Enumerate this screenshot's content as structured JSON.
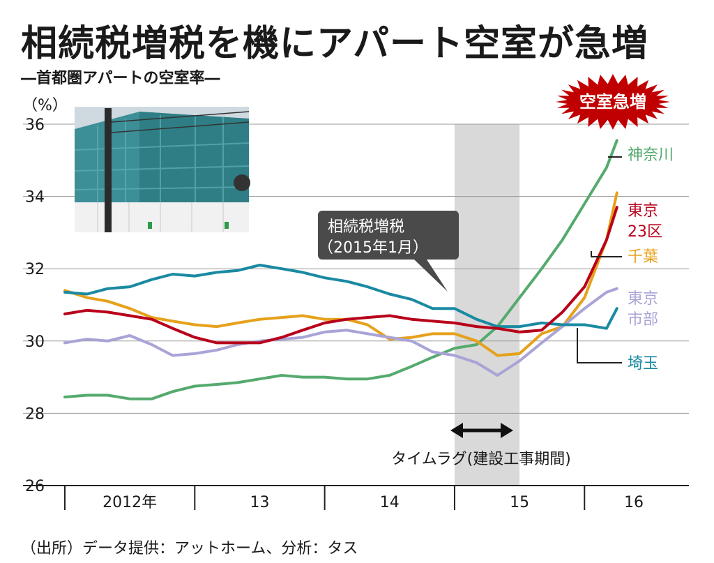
{
  "title": "相続税増税を機にアパート空室が急増",
  "subtitle": "―首都圏アパートの空室率―",
  "source": "（出所）データ提供：アットホーム、分析：タス",
  "badge": "空室急増",
  "colors": {
    "神奈川": "#55aa6e",
    "東京23区": "#b8001a",
    "千葉": "#e6a11c",
    "東京市部": "#a8a4d6",
    "埼玉": "#1a8aa2",
    "band": "#d9d9d9",
    "badge": "#c00000"
  },
  "callout": {
    "line1": "相続税増税",
    "line2": "（2015年1月）"
  },
  "timelag_label": "タイムラグ(建設工事期間)",
  "photo": {
    "icon": "building-under-construction-photo"
  },
  "chart_data": {
    "type": "line",
    "ylabel": "（%）",
    "ylim": [
      26,
      36
    ],
    "yticks": [
      26,
      28,
      30,
      32,
      34,
      36
    ],
    "xlim": [
      2012.0,
      2016.75
    ],
    "year_labels": [
      {
        "label": "2012年",
        "x": 2012.5
      },
      {
        "label": "13",
        "x": 2013.5
      },
      {
        "label": "14",
        "x": 2014.5
      },
      {
        "label": "15",
        "x": 2015.5
      },
      {
        "label": "16",
        "x": 2016.38
      }
    ],
    "year_dividers": [
      2012.0,
      2013.0,
      2014.0,
      2015.0,
      2016.0
    ],
    "shaded_band": [
      2015.0,
      2015.5
    ],
    "grid": true,
    "series": [
      {
        "name": "神奈川",
        "label_lines": [
          "神奈川"
        ],
        "x": [
          2012.0,
          2012.17,
          2012.33,
          2012.5,
          2012.67,
          2012.83,
          2013.0,
          2013.17,
          2013.33,
          2013.5,
          2013.67,
          2013.83,
          2014.0,
          2014.17,
          2014.33,
          2014.5,
          2014.67,
          2014.83,
          2015.0,
          2015.17,
          2015.33,
          2015.5,
          2015.67,
          2015.83,
          2016.0,
          2016.17,
          2016.25
        ],
        "values": [
          28.45,
          28.5,
          28.5,
          28.4,
          28.4,
          28.6,
          28.75,
          28.8,
          28.85,
          28.95,
          29.05,
          29.0,
          29.0,
          28.95,
          28.95,
          29.05,
          29.3,
          29.55,
          29.8,
          29.9,
          30.4,
          31.2,
          32.0,
          32.8,
          33.8,
          34.8,
          35.55
        ]
      },
      {
        "name": "東京23区",
        "label_lines": [
          "東京",
          "23区"
        ],
        "x": [
          2012.0,
          2012.17,
          2012.33,
          2012.5,
          2012.67,
          2012.83,
          2013.0,
          2013.17,
          2013.33,
          2013.5,
          2013.67,
          2013.83,
          2014.0,
          2014.17,
          2014.33,
          2014.5,
          2014.67,
          2014.83,
          2015.0,
          2015.17,
          2015.33,
          2015.5,
          2015.67,
          2015.83,
          2016.0,
          2016.17,
          2016.25
        ],
        "values": [
          30.75,
          30.85,
          30.8,
          30.7,
          30.6,
          30.35,
          30.1,
          29.95,
          29.95,
          29.95,
          30.1,
          30.3,
          30.5,
          30.6,
          30.65,
          30.7,
          30.6,
          30.55,
          30.5,
          30.4,
          30.35,
          30.25,
          30.3,
          30.8,
          31.5,
          32.8,
          33.7
        ]
      },
      {
        "name": "千葉",
        "label_lines": [
          "千葉"
        ],
        "x": [
          2012.0,
          2012.17,
          2012.33,
          2012.5,
          2012.67,
          2012.83,
          2013.0,
          2013.17,
          2013.33,
          2013.5,
          2013.67,
          2013.83,
          2014.0,
          2014.17,
          2014.33,
          2014.5,
          2014.67,
          2014.83,
          2015.0,
          2015.17,
          2015.33,
          2015.5,
          2015.67,
          2015.83,
          2016.0,
          2016.17,
          2016.25
        ],
        "values": [
          31.4,
          31.2,
          31.1,
          30.9,
          30.65,
          30.55,
          30.45,
          30.4,
          30.5,
          30.6,
          30.65,
          30.7,
          30.6,
          30.6,
          30.45,
          30.05,
          30.1,
          30.2,
          30.2,
          30.0,
          29.6,
          29.65,
          30.2,
          30.4,
          31.2,
          32.8,
          34.1
        ]
      },
      {
        "name": "東京市部",
        "label_lines": [
          "東京",
          "市部"
        ],
        "x": [
          2012.0,
          2012.17,
          2012.33,
          2012.5,
          2012.67,
          2012.83,
          2013.0,
          2013.17,
          2013.33,
          2013.5,
          2013.67,
          2013.83,
          2014.0,
          2014.17,
          2014.33,
          2014.5,
          2014.67,
          2014.83,
          2015.0,
          2015.17,
          2015.33,
          2015.5,
          2015.67,
          2015.83,
          2016.0,
          2016.17,
          2016.25
        ],
        "values": [
          29.95,
          30.05,
          30.0,
          30.15,
          29.9,
          29.6,
          29.65,
          29.75,
          29.9,
          30.0,
          30.05,
          30.1,
          30.25,
          30.3,
          30.2,
          30.1,
          30.0,
          29.7,
          29.6,
          29.4,
          29.05,
          29.45,
          29.95,
          30.4,
          30.9,
          31.35,
          31.45
        ]
      },
      {
        "name": "埼玉",
        "label_lines": [
          "埼玉"
        ],
        "x": [
          2012.0,
          2012.17,
          2012.33,
          2012.5,
          2012.67,
          2012.83,
          2013.0,
          2013.17,
          2013.33,
          2013.5,
          2013.67,
          2013.83,
          2014.0,
          2014.17,
          2014.33,
          2014.5,
          2014.67,
          2014.83,
          2015.0,
          2015.17,
          2015.33,
          2015.5,
          2015.67,
          2015.83,
          2016.0,
          2016.17,
          2016.25
        ],
        "values": [
          31.35,
          31.3,
          31.45,
          31.5,
          31.7,
          31.85,
          31.8,
          31.9,
          31.95,
          32.1,
          32.0,
          31.9,
          31.75,
          31.65,
          31.5,
          31.3,
          31.15,
          30.9,
          30.9,
          30.6,
          30.4,
          30.4,
          30.5,
          30.45,
          30.45,
          30.35,
          30.9
        ]
      }
    ]
  }
}
